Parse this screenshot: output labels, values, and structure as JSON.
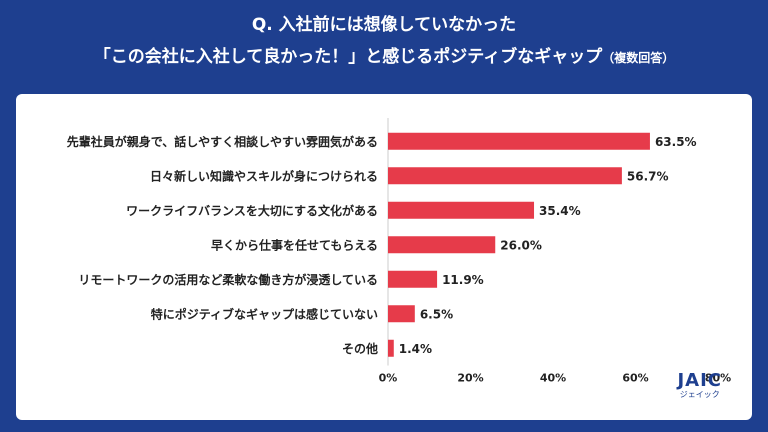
{
  "header": {
    "line1": "Q. 入社前には想像していなかった",
    "line2": "「この会社に入社して良かった！」と感じるポジティブなギャップ",
    "line2_note": "（複数回答）"
  },
  "chart_data": {
    "type": "bar",
    "orientation": "horizontal",
    "categories": [
      "先輩社員が親身で、話しやすく相談しやすい雰囲気がある",
      "日々新しい知識やスキルが身につけられる",
      "ワークライフバランスを大切にする文化がある",
      "早くから仕事を任せてもらえる",
      "リモートワークの活用など柔軟な働き方が浸透している",
      "特にポジティブなギャップは感じていない",
      "その他"
    ],
    "values": [
      63.5,
      56.7,
      35.4,
      26.0,
      11.9,
      6.5,
      1.4
    ],
    "value_labels": [
      "63.5%",
      "56.7%",
      "35.4%",
      "26.0%",
      "11.9%",
      "6.5%",
      "1.4%"
    ],
    "xlim": [
      0,
      80
    ],
    "xticks": [
      0,
      20,
      40,
      60,
      80
    ],
    "xtick_labels": [
      "0%",
      "20%",
      "40%",
      "60%",
      "80%"
    ],
    "bar_color": "#e63b4a",
    "grid": false
  },
  "logo": {
    "mark": "JAIC",
    "sub": "ジェイック"
  },
  "colors": {
    "background": "#1e3f8f",
    "panel": "#ffffff",
    "text": "#222222"
  }
}
